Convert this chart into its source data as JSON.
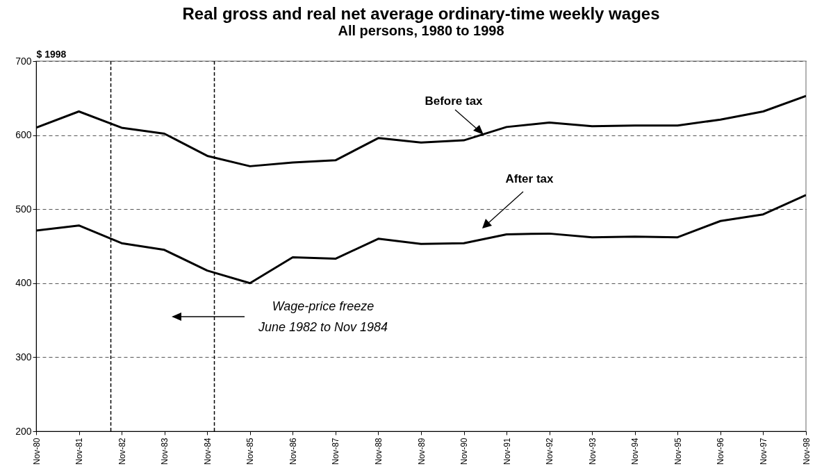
{
  "chart_data": {
    "type": "line",
    "title": "Real gross and real net average ordinary-time weekly wages",
    "subtitle": "All persons, 1980 to 1998",
    "ylabel": "$ 1998",
    "x": [
      "1980-11",
      "1981-11",
      "1982-11",
      "1983-11",
      "1984-11",
      "1985-11",
      "1986-11",
      "1987-11",
      "1988-11",
      "1989-11",
      "1990-11",
      "1991-11",
      "1992-11",
      "1993-11",
      "1994-11",
      "1995-11",
      "1996-11",
      "1997-11",
      "1998-11"
    ],
    "series": [
      {
        "name": "Before tax",
        "color": "#000000",
        "values": [
          610,
          632,
          610,
          602,
          572,
          558,
          563,
          566,
          596,
          590,
          593,
          611,
          617,
          612,
          613,
          613,
          621,
          632,
          653
        ]
      },
      {
        "name": "After tax",
        "color": "#000000",
        "values": [
          471,
          478,
          454,
          445,
          417,
          400,
          435,
          433,
          460,
          453,
          454,
          466,
          467,
          462,
          463,
          462,
          484,
          493,
          519
        ]
      }
    ],
    "xlim": [
      "1980-11",
      "1998-11"
    ],
    "xticks": [
      {
        "value": "1980-11",
        "label": "Nov-80"
      },
      {
        "value": "1981-11",
        "label": "Nov-81"
      },
      {
        "value": "1982-11",
        "label": "Nov-82"
      },
      {
        "value": "1983-11",
        "label": "Nov-83"
      },
      {
        "value": "1984-11",
        "label": "Nov-84"
      },
      {
        "value": "1985-11",
        "label": "Nov-85"
      },
      {
        "value": "1986-11",
        "label": "Nov-86"
      },
      {
        "value": "1987-11",
        "label": "Nov-87"
      },
      {
        "value": "1988-11",
        "label": "Nov-88"
      },
      {
        "value": "1989-11",
        "label": "Nov-89"
      },
      {
        "value": "1990-11",
        "label": "Nov-90"
      },
      {
        "value": "1991-11",
        "label": "Nov-91"
      },
      {
        "value": "1992-11",
        "label": "Nov-92"
      },
      {
        "value": "1993-11",
        "label": "Nov-93"
      },
      {
        "value": "1994-11",
        "label": "Nov-94"
      },
      {
        "value": "1995-11",
        "label": "Nov-95"
      },
      {
        "value": "1996-11",
        "label": "Nov-96"
      },
      {
        "value": "1997-11",
        "label": "Nov-97"
      },
      {
        "value": "1998-11",
        "label": "Nov-98"
      }
    ],
    "ylim": [
      200,
      700
    ],
    "yticks": [
      200,
      300,
      400,
      500,
      600,
      700
    ],
    "grid": "y",
    "legend": false,
    "ref_lines": [
      {
        "axis": "x",
        "value": "1982-08",
        "color": "#000000",
        "line_style": "dashed"
      },
      {
        "axis": "x",
        "value": "1985-01",
        "color": "#000000",
        "line_style": "dashed"
      }
    ],
    "annotations": [
      "Wage-price freeze\nJune 1982 to Nov 1984"
    ]
  }
}
